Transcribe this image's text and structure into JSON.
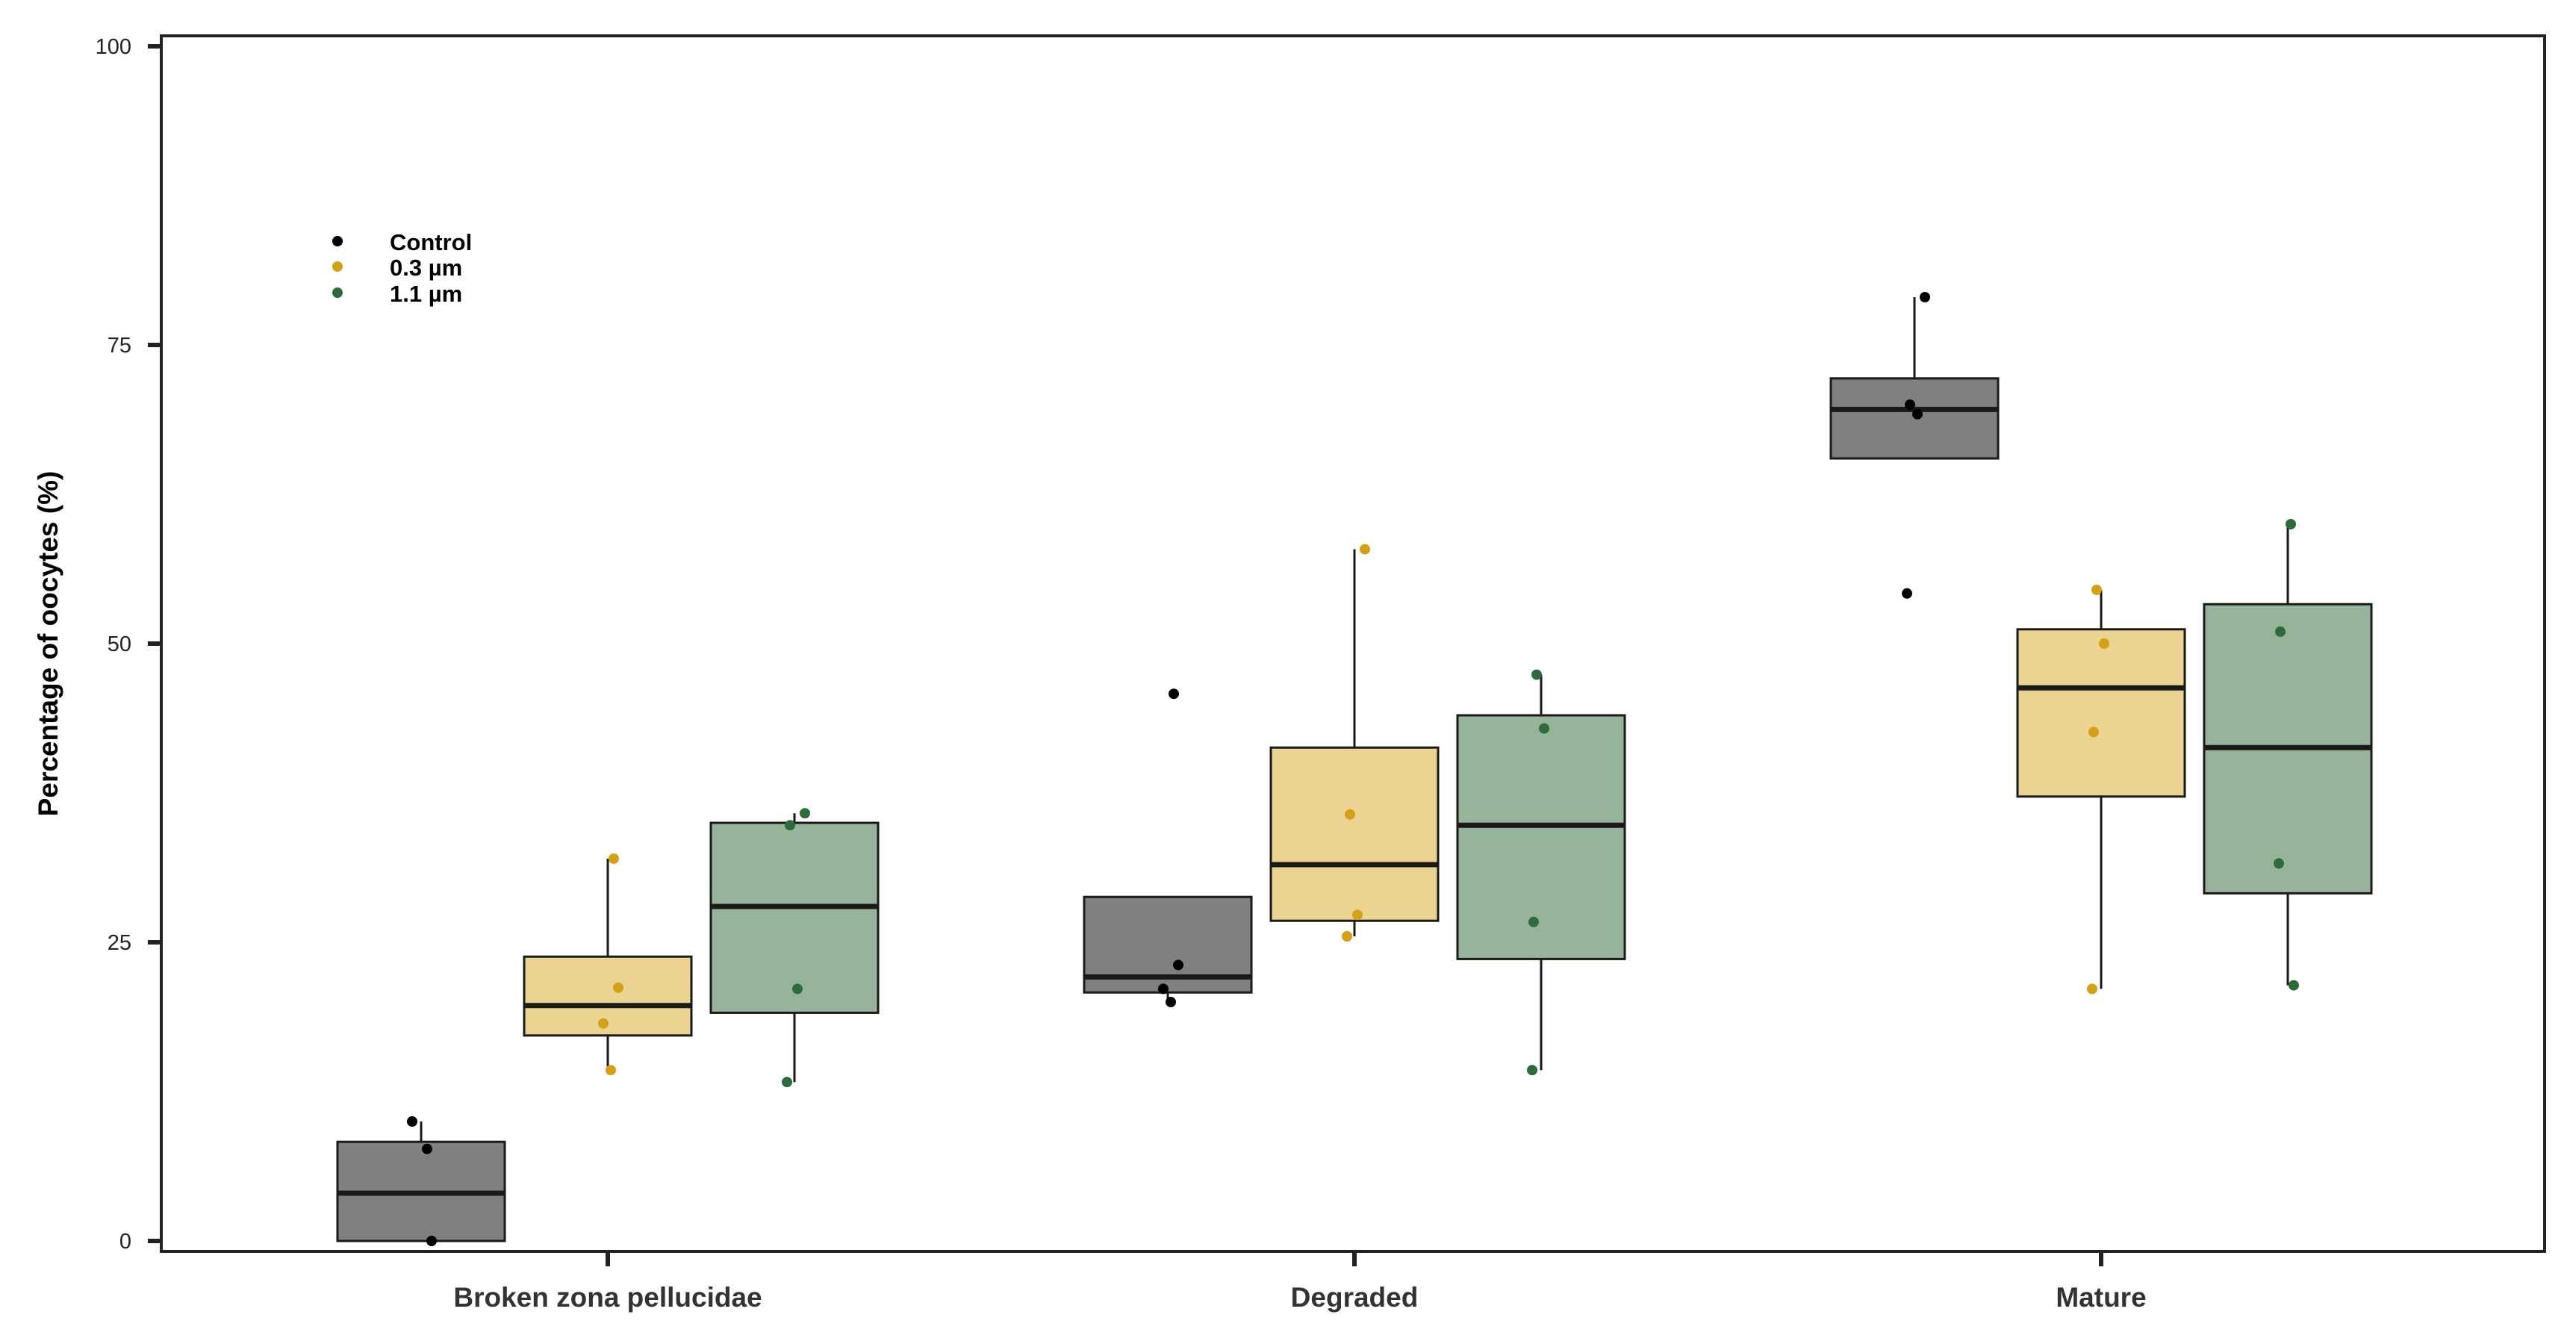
{
  "chart_data": {
    "type": "box",
    "ylabel": "Percentage of oocytes (%)",
    "xlabel": "",
    "ylim": [
      0,
      100
    ],
    "yticks": [
      0,
      25,
      50,
      75,
      100
    ],
    "categories": [
      "Broken zona pellucidae",
      "Degraded",
      "Mature"
    ],
    "legend_position": "top-left",
    "series": [
      {
        "name": "Control",
        "point_color": "#000000",
        "box_color": "#808080",
        "boxes": [
          {
            "q1": 0,
            "median": 4,
            "q3": 8.3,
            "whisker_low": 0,
            "whisker_high": 10,
            "points": [
              10,
              7.7,
              0
            ]
          },
          {
            "q1": 20.8,
            "median": 22.1,
            "q3": 28.8,
            "whisker_low": 20,
            "whisker_high": 28.8,
            "points": [
              45.8,
              23.1,
              21.1,
              20
            ]
          },
          {
            "q1": 65.5,
            "median": 69.6,
            "q3": 72.2,
            "whisker_low": 65.5,
            "whisker_high": 79,
            "points": [
              79,
              70,
              69.2,
              54.2
            ]
          }
        ]
      },
      {
        "name": "0.3 µm",
        "point_color": "#D4A017",
        "box_color": "#EBD391",
        "boxes": [
          {
            "q1": 17.2,
            "median": 19.7,
            "q3": 23.8,
            "whisker_low": 14.3,
            "whisker_high": 32,
            "points": [
              32,
              21.2,
              18.2,
              14.3
            ]
          },
          {
            "q1": 26.8,
            "median": 31.5,
            "q3": 41.3,
            "whisker_low": 25.5,
            "whisker_high": 57.9,
            "points": [
              57.9,
              35.7,
              27.3,
              25.5
            ]
          },
          {
            "q1": 37.2,
            "median": 46.3,
            "q3": 51.2,
            "whisker_low": 21.1,
            "whisker_high": 54.5,
            "points": [
              54.5,
              50,
              42.6,
              21.1
            ]
          }
        ]
      },
      {
        "name": "1.1 µm",
        "point_color": "#2E6B3A",
        "box_color": "#97B49A",
        "boxes": [
          {
            "q1": 19.1,
            "median": 28,
            "q3": 35,
            "whisker_low": 13.3,
            "whisker_high": 35.8,
            "points": [
              35.8,
              34.8,
              21.1,
              13.3
            ]
          },
          {
            "q1": 23.6,
            "median": 34.8,
            "q3": 44,
            "whisker_low": 14.3,
            "whisker_high": 47.4,
            "points": [
              47.4,
              42.9,
              26.7,
              14.3
            ]
          },
          {
            "q1": 29.1,
            "median": 41.3,
            "q3": 53.3,
            "whisker_low": 21.4,
            "whisker_high": 60,
            "points": [
              60,
              51,
              31.6,
              21.4
            ]
          }
        ]
      }
    ]
  }
}
